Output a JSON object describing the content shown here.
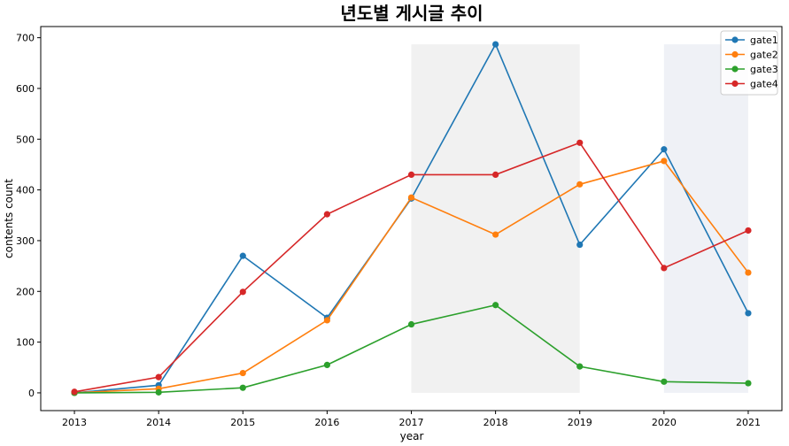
{
  "chart_data": {
    "type": "line",
    "title": "년도별 게시글 추이",
    "xlabel": "year",
    "ylabel": "contents count",
    "x": [
      2013,
      2014,
      2015,
      2016,
      2017,
      2018,
      2019,
      2020,
      2021
    ],
    "xlim": [
      2012.6,
      2021.4
    ],
    "ylim": [
      -35,
      722
    ],
    "yticks": [
      0,
      100,
      200,
      300,
      400,
      500,
      600,
      700
    ],
    "grid": false,
    "legend_position": "top-right",
    "shaded_regions": [
      {
        "x_start": 2017,
        "x_end": 2019,
        "y_start": 0,
        "y_end": 687,
        "color": "#dcdcdc"
      },
      {
        "x_start": 2020,
        "x_end": 2021,
        "y_start": 0,
        "y_end": 687,
        "color": "#d6dde8"
      }
    ],
    "series": [
      {
        "name": "gate1",
        "color": "#1f77b4",
        "values": [
          0,
          15,
          270,
          148,
          383,
          687,
          292,
          480,
          157
        ]
      },
      {
        "name": "gate2",
        "color": "#ff7f0e",
        "values": [
          0,
          8,
          39,
          143,
          385,
          312,
          411,
          457,
          237
        ]
      },
      {
        "name": "gate3",
        "color": "#2ca02c",
        "values": [
          0,
          1,
          10,
          55,
          135,
          173,
          52,
          22,
          19
        ]
      },
      {
        "name": "gate4",
        "color": "#d62728",
        "values": [
          2,
          31,
          199,
          352,
          430,
          430,
          493,
          246,
          320
        ]
      }
    ]
  }
}
